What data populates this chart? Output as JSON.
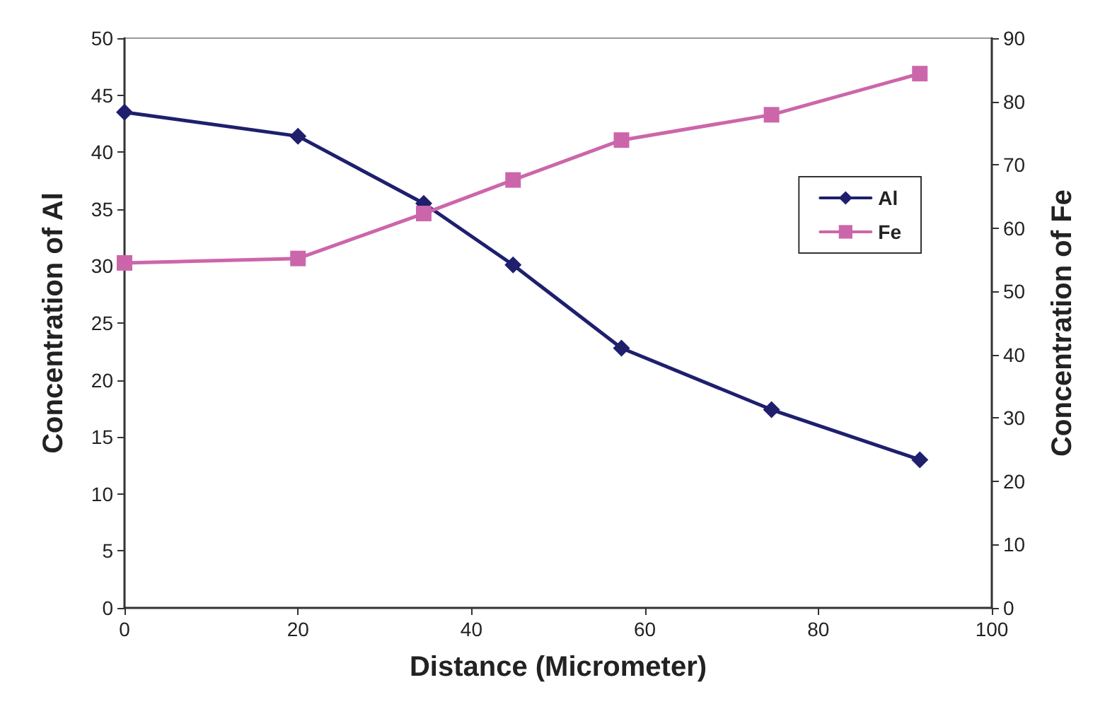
{
  "chart_data": {
    "type": "line",
    "xlabel": "Distance (Micrometer)",
    "ylabel": "Concentration of Al",
    "y2label": "Concentration of Fe",
    "x": [
      0,
      20,
      34.5,
      44.8,
      57.3,
      74.6,
      91.7
    ],
    "series": [
      {
        "name": "Al",
        "color": "#1f1f6e",
        "marker": "diamond",
        "values": [
          43.5,
          41.4,
          35.5,
          30.1,
          22.8,
          17.4,
          13.0
        ]
      },
      {
        "name": "Fe",
        "color": "#cc66aa",
        "marker": "square",
        "axis": "y2",
        "values": [
          54.5,
          55.2,
          62.3,
          67.6,
          73.9,
          77.9,
          84.4
        ]
      }
    ],
    "xlim": [
      0,
      100
    ],
    "xticks": [
      0,
      20,
      40,
      60,
      80,
      100
    ],
    "ylim": [
      0,
      50
    ],
    "yticks": [
      0,
      5,
      10,
      15,
      20,
      25,
      30,
      35,
      40,
      45,
      50
    ],
    "y2lim": [
      0,
      90
    ],
    "y2ticks": [
      0,
      10,
      20,
      30,
      40,
      50,
      60,
      70,
      80,
      90
    ],
    "grid": false,
    "legend": "right",
    "line_style": "solid"
  }
}
